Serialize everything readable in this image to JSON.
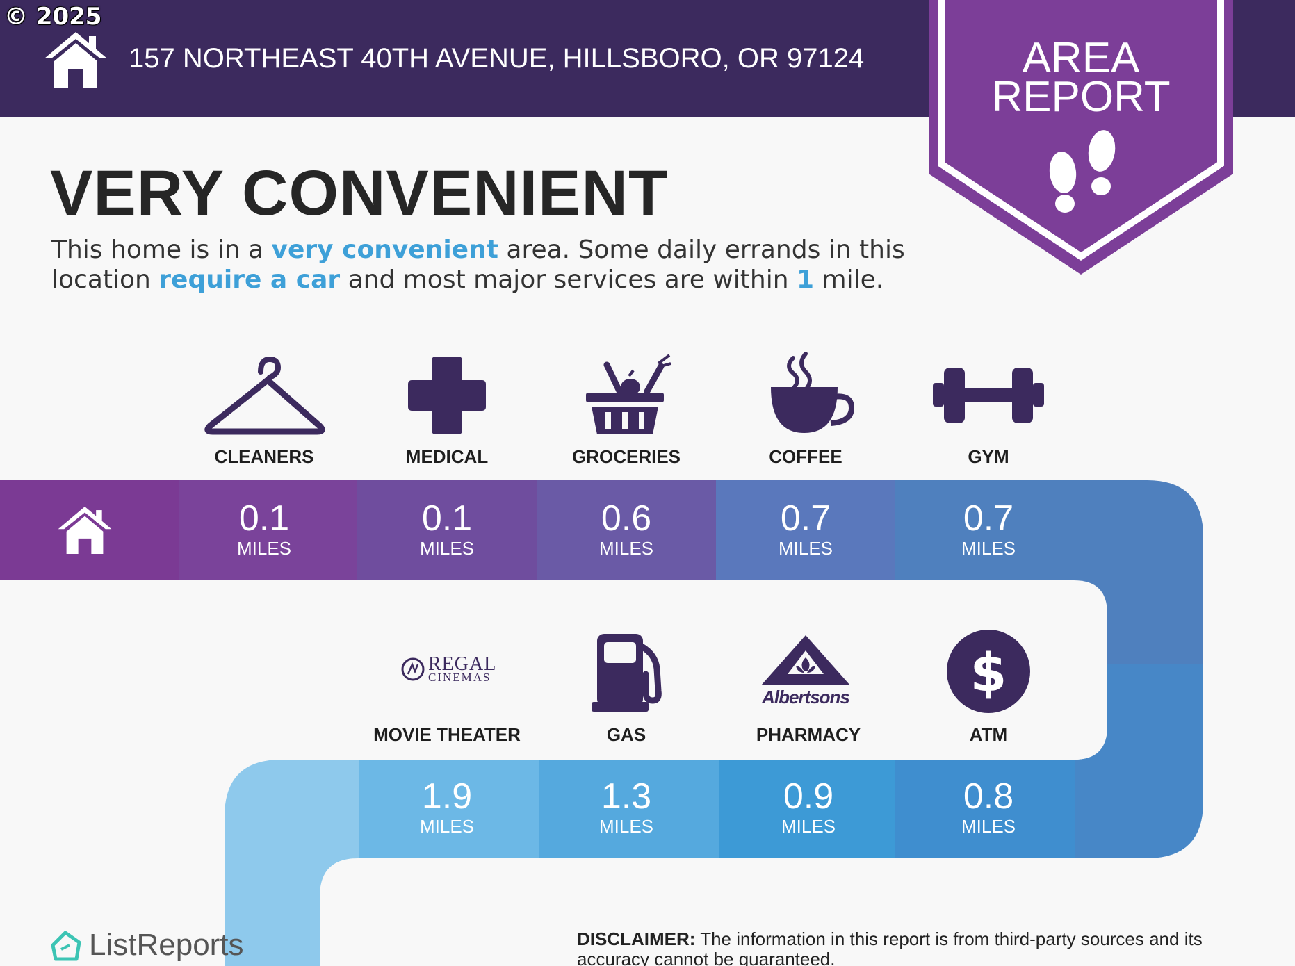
{
  "watermark": "© 2025",
  "header": {
    "address": "157 NORTHEAST 40TH AVENUE, HILLSBORO, OR 97124"
  },
  "badge": {
    "line1": "AREA",
    "line2": "REPORT"
  },
  "headline": "VERY CONVENIENT",
  "description": {
    "t1": "This home is in a ",
    "h1": "very convenient",
    "t2": " area. Some daily errands in this location ",
    "h2": "require a car",
    "t3": " and most major services are within ",
    "h3": "1",
    "t4": " mile."
  },
  "row1": [
    {
      "label": "CLEANERS",
      "value": "0.1",
      "unit": "MILES",
      "icon": "hanger-icon"
    },
    {
      "label": "MEDICAL",
      "value": "0.1",
      "unit": "MILES",
      "icon": "medical-cross-icon"
    },
    {
      "label": "GROCERIES",
      "value": "0.6",
      "unit": "MILES",
      "icon": "grocery-basket-icon"
    },
    {
      "label": "COFFEE",
      "value": "0.7",
      "unit": "MILES",
      "icon": "coffee-cup-icon"
    },
    {
      "label": "GYM",
      "value": "0.7",
      "unit": "MILES",
      "icon": "dumbbell-icon"
    }
  ],
  "row2": [
    {
      "label": "MOVIE THEATER",
      "value": "1.9",
      "unit": "MILES",
      "icon": "regal-cinemas-logo",
      "logo_line1": "REGAL",
      "logo_line2": "CINEMAS"
    },
    {
      "label": "GAS",
      "value": "1.3",
      "unit": "MILES",
      "icon": "gas-pump-icon"
    },
    {
      "label": "PHARMACY",
      "value": "0.9",
      "unit": "MILES",
      "icon": "albertsons-logo",
      "logo_text": "Albertsons"
    },
    {
      "label": "ATM",
      "value": "0.8",
      "unit": "MILES",
      "icon": "dollar-circle-icon"
    }
  ],
  "footer": {
    "brand": "ListReports",
    "disclaimer_label": "DISCLAIMER:",
    "disclaimer_text": " The information in this report is from third-party sources and its accuracy cannot be guaranteed."
  },
  "colors": {
    "header": "#3c2a5e",
    "badge": "#7c3e98",
    "icon": "#3c2a5e",
    "highlight": "#3ea0d8",
    "row1_cells": [
      "#7b3a94",
      "#7a439a",
      "#6f4d9e",
      "#6a5aa6",
      "#5a78bc",
      "#4f80be"
    ],
    "row2_cells": [
      "#6cb8e6",
      "#55a9de",
      "#3d9ad6",
      "#3f8ecf",
      "#4787c7"
    ]
  }
}
